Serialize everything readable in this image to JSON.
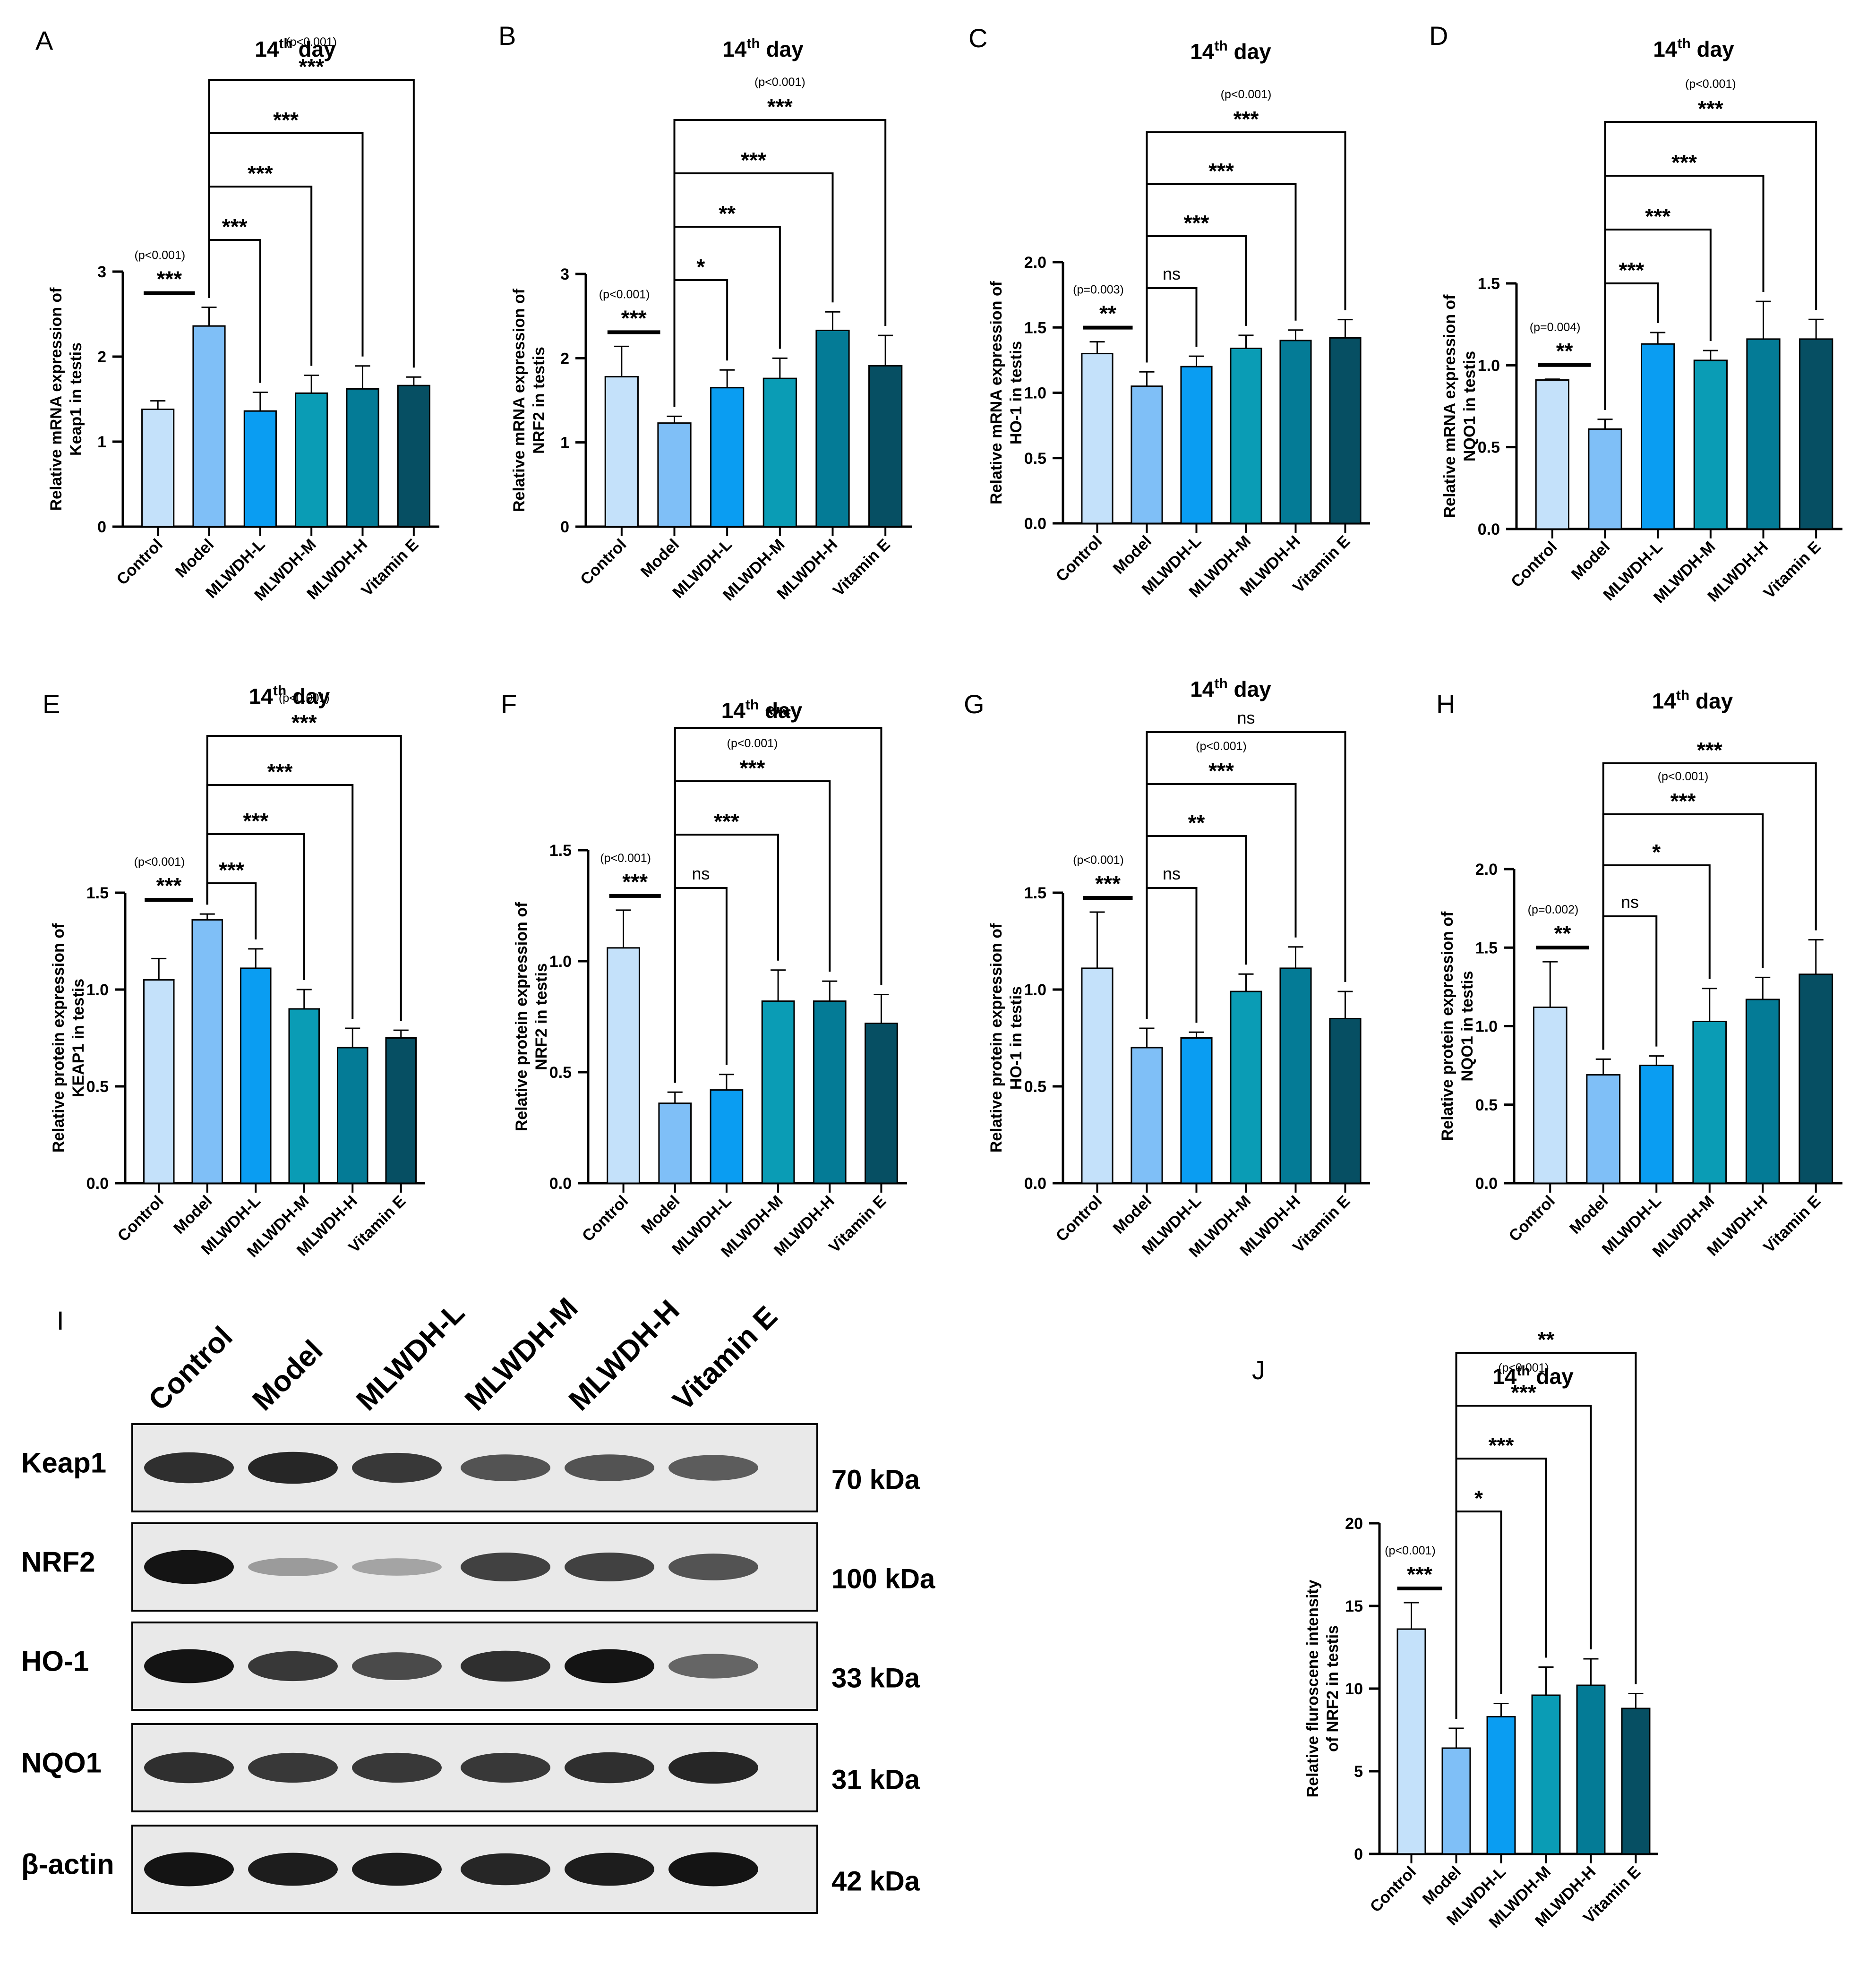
{
  "figure": {
    "categories": [
      "Control",
      "Model",
      "MLWDH-L",
      "MLWDH-M",
      "MLWDH-H",
      "Vitamin E"
    ],
    "colors": [
      "#c4e1fa",
      "#7fbff7",
      "#0a9df2",
      "#0a9cb5",
      "#047b96",
      "#064f63"
    ]
  },
  "chart_data": [
    {
      "id": "A",
      "type": "bar",
      "title": "14th day",
      "title_base": "14",
      "title_sup": "th",
      "title_rest": " day",
      "ylabel_lines": [
        "Relative mRNA expression of",
        "Keap1 in testis"
      ],
      "ylim": [
        0,
        3
      ],
      "yticks": [
        0,
        1,
        2,
        3
      ],
      "values": [
        1.38,
        2.36,
        1.36,
        1.57,
        1.62,
        1.66
      ],
      "errors": [
        0.1,
        0.22,
        0.22,
        0.21,
        0.27,
        0.1
      ],
      "comparisons": [
        {
          "from": 0,
          "to": 1,
          "type": "line",
          "label": "***",
          "p": "(p<0.001)"
        },
        {
          "from": 1,
          "to": 2,
          "type": "bracket",
          "label": "***"
        },
        {
          "from": 1,
          "to": 3,
          "type": "bracket",
          "label": "***"
        },
        {
          "from": 1,
          "to": 4,
          "type": "bracket",
          "label": "***"
        },
        {
          "from": 1,
          "to": 5,
          "type": "bracket",
          "label": "***",
          "p": "(p<0.001)"
        }
      ]
    },
    {
      "id": "B",
      "type": "bar",
      "title": "14th day",
      "title_base": "14",
      "title_sup": "th",
      "title_rest": " day",
      "ylabel_lines": [
        "Relative mRNA expression of",
        "NRF2 in testis"
      ],
      "ylim": [
        0,
        3
      ],
      "yticks": [
        0,
        1,
        2,
        3
      ],
      "values": [
        1.78,
        1.23,
        1.65,
        1.76,
        2.33,
        1.91
      ],
      "errors": [
        0.36,
        0.08,
        0.21,
        0.24,
        0.22,
        0.36
      ],
      "comparisons": [
        {
          "from": 0,
          "to": 1,
          "type": "line",
          "label": "***",
          "p": "(p<0.001)"
        },
        {
          "from": 1,
          "to": 2,
          "type": "bracket",
          "label": "*"
        },
        {
          "from": 1,
          "to": 3,
          "type": "bracket",
          "label": "**"
        },
        {
          "from": 1,
          "to": 4,
          "type": "bracket",
          "label": "***"
        },
        {
          "from": 1,
          "to": 5,
          "type": "bracket",
          "label": "***",
          "p": "(p<0.001)"
        }
      ]
    },
    {
      "id": "C",
      "type": "bar",
      "title": "14th day",
      "title_base": "14",
      "title_sup": "th",
      "title_rest": " day",
      "ylabel_lines": [
        "Relative mRNA expression of",
        "HO-1 in testis"
      ],
      "ylim": [
        0,
        2
      ],
      "yticks": [
        0.0,
        0.5,
        1.0,
        1.5,
        2.0
      ],
      "values": [
        1.3,
        1.05,
        1.2,
        1.34,
        1.4,
        1.42
      ],
      "errors": [
        0.09,
        0.11,
        0.08,
        0.1,
        0.08,
        0.14
      ],
      "comparisons": [
        {
          "from": 0,
          "to": 1,
          "type": "line",
          "label": "**",
          "p": "(p=0.003)"
        },
        {
          "from": 1,
          "to": 2,
          "type": "bracket",
          "label": "ns"
        },
        {
          "from": 1,
          "to": 3,
          "type": "bracket",
          "label": "***"
        },
        {
          "from": 1,
          "to": 4,
          "type": "bracket",
          "label": "***"
        },
        {
          "from": 1,
          "to": 5,
          "type": "bracket",
          "label": "***",
          "p": "(p<0.001)"
        }
      ]
    },
    {
      "id": "D",
      "type": "bar",
      "title": "14th day",
      "title_base": "14",
      "title_sup": "th",
      "title_rest": " day",
      "ylabel_lines": [
        "Relative mRNA expression of",
        "NQO1 in testis"
      ],
      "ylim": [
        0,
        1.5
      ],
      "yticks": [
        0.0,
        0.5,
        1.0,
        1.5
      ],
      "values": [
        0.91,
        0.61,
        1.13,
        1.03,
        1.16,
        1.16
      ],
      "errors": [
        0.005,
        0.06,
        0.07,
        0.06,
        0.23,
        0.12
      ],
      "comparisons": [
        {
          "from": 0,
          "to": 1,
          "type": "line",
          "label": "**",
          "p": "(p=0.004)"
        },
        {
          "from": 1,
          "to": 2,
          "type": "bracket",
          "label": "***"
        },
        {
          "from": 1,
          "to": 3,
          "type": "bracket",
          "label": "***"
        },
        {
          "from": 1,
          "to": 4,
          "type": "bracket",
          "label": "***"
        },
        {
          "from": 1,
          "to": 5,
          "type": "bracket",
          "label": "***",
          "p": "(p<0.001)"
        }
      ]
    },
    {
      "id": "E",
      "type": "bar",
      "title": "14th day",
      "title_base": "14",
      "title_sup": "th",
      "title_rest": " day",
      "ylabel_lines": [
        "Relative protein expression of",
        "KEAP1 in testis"
      ],
      "ylim": [
        0,
        1.5
      ],
      "yticks": [
        0.0,
        0.5,
        1.0,
        1.5
      ],
      "values": [
        1.05,
        1.36,
        1.11,
        0.9,
        0.7,
        0.75
      ],
      "errors": [
        0.11,
        0.03,
        0.1,
        0.1,
        0.1,
        0.04
      ],
      "comparisons": [
        {
          "from": 0,
          "to": 1,
          "type": "line",
          "label": "***",
          "p": "(p<0.001)"
        },
        {
          "from": 1,
          "to": 2,
          "type": "bracket",
          "label": "***"
        },
        {
          "from": 1,
          "to": 3,
          "type": "bracket",
          "label": "***"
        },
        {
          "from": 1,
          "to": 4,
          "type": "bracket",
          "label": "***"
        },
        {
          "from": 1,
          "to": 5,
          "type": "bracket",
          "label": "***",
          "p": "(p<0.001)"
        }
      ]
    },
    {
      "id": "F",
      "type": "bar",
      "title": "14th day",
      "title_base": "14",
      "title_sup": "th",
      "title_rest": " day",
      "ylabel_lines": [
        "Relative protein expression of",
        "NRF2 in testis"
      ],
      "ylim": [
        0,
        1.5
      ],
      "yticks": [
        0.0,
        0.5,
        1.0,
        1.5
      ],
      "values": [
        1.06,
        0.36,
        0.42,
        0.82,
        0.82,
        0.72
      ],
      "errors": [
        0.17,
        0.05,
        0.07,
        0.14,
        0.09,
        0.13
      ],
      "comparisons": [
        {
          "from": 0,
          "to": 1,
          "type": "line",
          "label": "***",
          "p": "(p<0.001)"
        },
        {
          "from": 1,
          "to": 2,
          "type": "bracket",
          "label": "ns"
        },
        {
          "from": 1,
          "to": 3,
          "type": "bracket",
          "label": "***"
        },
        {
          "from": 1,
          "to": 4,
          "type": "bracket",
          "label": "***",
          "p": "(p<0.001)"
        },
        {
          "from": 1,
          "to": 5,
          "type": "bracket",
          "label": "***"
        }
      ]
    },
    {
      "id": "G",
      "type": "bar",
      "title": "14th day",
      "title_base": "14",
      "title_sup": "th",
      "title_rest": " day",
      "ylabel_lines": [
        "Relative protein expression of",
        "HO-1 in testis"
      ],
      "ylim": [
        0,
        1.5
      ],
      "yticks": [
        0.0,
        0.5,
        1.0,
        1.5
      ],
      "values": [
        1.11,
        0.7,
        0.75,
        0.99,
        1.11,
        0.85
      ],
      "errors": [
        0.29,
        0.1,
        0.03,
        0.09,
        0.11,
        0.14
      ],
      "comparisons": [
        {
          "from": 0,
          "to": 1,
          "type": "line",
          "label": "***",
          "p": "(p<0.001)"
        },
        {
          "from": 1,
          "to": 2,
          "type": "bracket",
          "label": "ns"
        },
        {
          "from": 1,
          "to": 3,
          "type": "bracket",
          "label": "**"
        },
        {
          "from": 1,
          "to": 4,
          "type": "bracket",
          "label": "***",
          "p": "(p<0.001)"
        },
        {
          "from": 1,
          "to": 5,
          "type": "bracket",
          "label": "ns"
        }
      ]
    },
    {
      "id": "H",
      "type": "bar",
      "title": "14th day",
      "title_base": "14",
      "title_sup": "th",
      "title_rest": " day",
      "ylabel_lines": [
        "Relative protein expression of",
        "NQO1 in testis"
      ],
      "ylim": [
        0,
        2
      ],
      "yticks": [
        0.0,
        0.5,
        1.0,
        1.5,
        2.0
      ],
      "values": [
        1.12,
        0.69,
        0.75,
        1.03,
        1.17,
        1.33
      ],
      "errors": [
        0.29,
        0.1,
        0.06,
        0.21,
        0.14,
        0.22
      ],
      "comparisons": [
        {
          "from": 0,
          "to": 1,
          "type": "line",
          "label": "**",
          "p": "(p=0.002)"
        },
        {
          "from": 1,
          "to": 2,
          "type": "bracket",
          "label": "ns"
        },
        {
          "from": 1,
          "to": 3,
          "type": "bracket",
          "label": "*"
        },
        {
          "from": 1,
          "to": 4,
          "type": "bracket",
          "label": "***",
          "p": "(p<0.001)"
        },
        {
          "from": 1,
          "to": 5,
          "type": "bracket",
          "label": "***"
        }
      ]
    },
    {
      "id": "J",
      "type": "bar",
      "title": "14th day",
      "title_base": "14",
      "title_sup": "th",
      "title_rest": " day",
      "ylabel_lines": [
        "Relative fluroscene  intensity",
        "of  NRF2 in testis"
      ],
      "ylim": [
        0,
        20
      ],
      "yticks": [
        0,
        5,
        10,
        15,
        20
      ],
      "values": [
        13.6,
        6.4,
        8.3,
        9.6,
        10.2,
        8.8
      ],
      "errors": [
        1.6,
        1.2,
        0.8,
        1.7,
        1.6,
        0.9
      ],
      "comparisons": [
        {
          "from": 0,
          "to": 1,
          "type": "line",
          "label": "***",
          "p": "(p<0.001)"
        },
        {
          "from": 1,
          "to": 2,
          "type": "bracket",
          "label": "*"
        },
        {
          "from": 1,
          "to": 3,
          "type": "bracket",
          "label": "***"
        },
        {
          "from": 1,
          "to": 4,
          "type": "bracket",
          "label": "***",
          "p": "(p<0.001)"
        },
        {
          "from": 1,
          "to": 5,
          "type": "bracket",
          "label": "**"
        }
      ]
    }
  ],
  "blot": {
    "letter": "I",
    "lanes": [
      "Control",
      "Model",
      "MLWDH-L",
      "MLWDH-M",
      "MLWDH-H",
      "Vitamin E"
    ],
    "rows": [
      {
        "protein": "Keap1",
        "kda": "70 kDa",
        "intensity": [
          0.85,
          0.9,
          0.8,
          0.65,
          0.65,
          0.6
        ]
      },
      {
        "protein": "NRF2",
        "kda": "100 kDa",
        "intensity": [
          1.0,
          0.25,
          0.2,
          0.75,
          0.75,
          0.65
        ]
      },
      {
        "protein": "HO-1",
        "kda": "33 kDa",
        "intensity": [
          1.0,
          0.8,
          0.7,
          0.85,
          1.0,
          0.55
        ]
      },
      {
        "protein": "NQO1",
        "kda": "31 kDa",
        "intensity": [
          0.85,
          0.8,
          0.8,
          0.8,
          0.85,
          0.9
        ]
      },
      {
        "protein": "β-actin",
        "kda": "42 kDa",
        "intensity": [
          1.0,
          0.95,
          0.95,
          0.9,
          0.95,
          1.0
        ]
      }
    ]
  }
}
